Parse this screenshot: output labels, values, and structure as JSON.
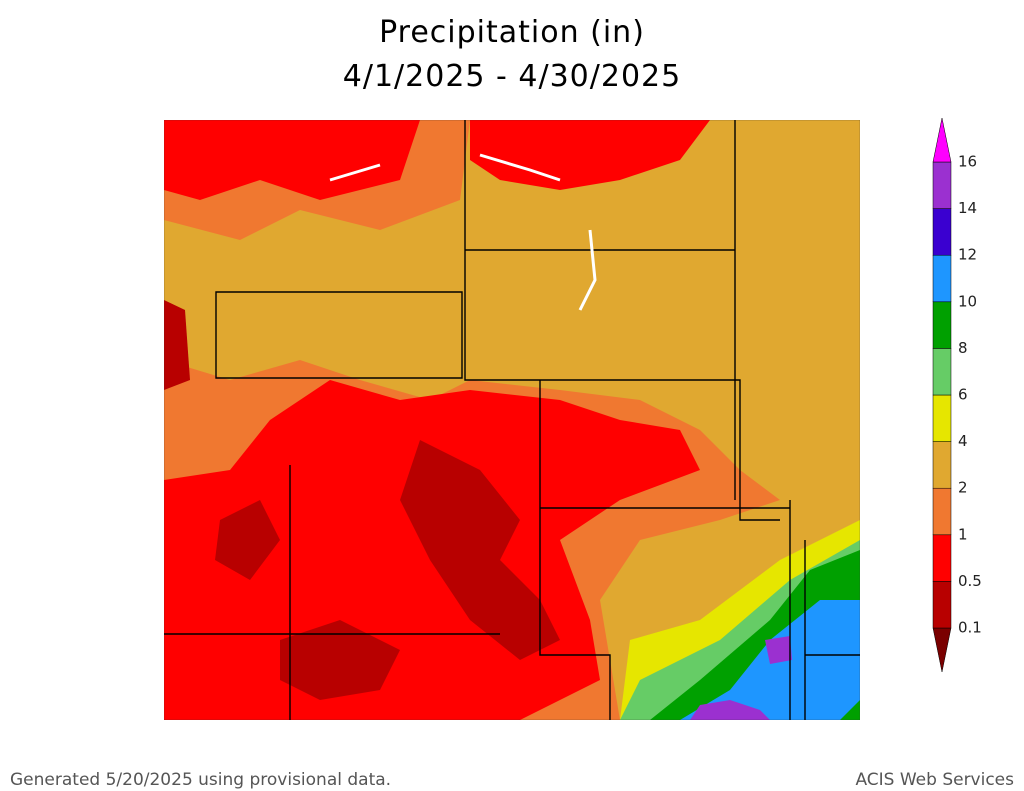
{
  "title": [
    "Precipitation (in)",
    "4/1/2025 - 4/30/2025"
  ],
  "legend": {
    "labels": [
      0.1,
      0.5,
      1,
      2,
      4,
      6,
      8,
      10,
      12,
      14,
      16
    ],
    "colors": [
      "#7a0000",
      "#b80000",
      "#ff0000",
      "#f07830",
      "#e0a830",
      "#e6e600",
      "#66cc66",
      "#00a000",
      "#1e96ff",
      "#3a00d0",
      "#9b30d0",
      "#ff00ff"
    ]
  },
  "footer": {
    "left": "Generated 5/20/2025 using provisional data.",
    "right": "ACIS Web Services"
  }
}
